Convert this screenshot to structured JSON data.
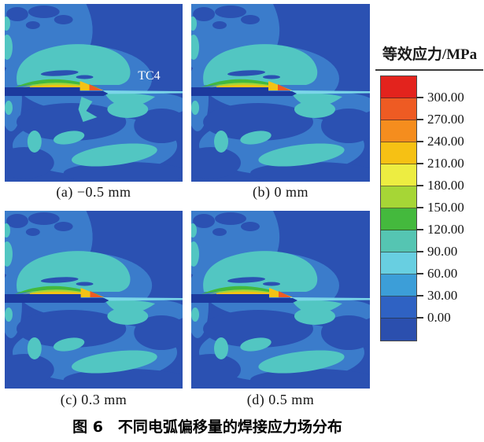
{
  "figure": {
    "panels": [
      {
        "id": "a",
        "label": "(a) −0.5 mm",
        "annotation": "TC4"
      },
      {
        "id": "b",
        "label": "(b) 0 mm"
      },
      {
        "id": "c",
        "label": "(c) 0.3 mm"
      },
      {
        "id": "d",
        "label": "(d) 0.5 mm"
      }
    ],
    "legend": {
      "title": "等效应力/MPa",
      "tick_labels": [
        "300.00",
        "270.00",
        "240.00",
        "210.00",
        "180.00",
        "150.00",
        "120.00",
        "90.00",
        "60.00",
        "30.00",
        "0.00"
      ],
      "band_colors_top_to_bottom": [
        "#e3231d",
        "#ee5b23",
        "#f58d1e",
        "#f6c114",
        "#eded41",
        "#a6d636",
        "#44b93d",
        "#55c5b2",
        "#68cfe1",
        "#3c9ed8",
        "#2f62c3",
        "#2b4fae"
      ]
    },
    "caption": "图 6　不同电弧偏移量的焊接应力场分布",
    "panel_palette": {
      "background_dark_blue": "#2b51b2",
      "light_blue": "#3b7ccb",
      "teal": "#52c6c2",
      "pale_cyan": "#7ad6e8",
      "green": "#43b93e",
      "yellow_green": "#a6d637",
      "amber": "#f3c214",
      "orange_red": "#ee5b23",
      "weld_plate_navy": "#1c3a9e",
      "annotation_text": "#ffffff"
    }
  },
  "chart_data": {
    "type": "heatmap",
    "subtype": "FEM welding equivalent-stress contour plots (2x2 panels)",
    "title": "图 6　不同电弧偏移量的焊接应力场分布",
    "panels": [
      {
        "label": "(a) −0.5 mm",
        "arc_offset_mm": -0.5
      },
      {
        "label": "(b) 0 mm",
        "arc_offset_mm": 0
      },
      {
        "label": "(c) 0.3 mm",
        "arc_offset_mm": 0.3
      },
      {
        "label": "(d) 0.5 mm",
        "arc_offset_mm": 0.5
      }
    ],
    "colorbar": {
      "title": "等效应力/MPa",
      "unit": "MPa",
      "orientation": "vertical",
      "position": "right",
      "tick_values": [
        300,
        270,
        240,
        210,
        180,
        150,
        120,
        90,
        60,
        30,
        0
      ],
      "band_colors_top_to_bottom": [
        "#e3231d",
        "#ee5b23",
        "#f58d1e",
        "#f6c114",
        "#eded41",
        "#a6d636",
        "#44b93d",
        "#55c5b2",
        "#68cfe1",
        "#3c9ed8",
        "#2f62c3",
        "#2b4fae"
      ]
    },
    "material_annotation": "TC4",
    "notes": "Peak stress band (green/yellow/orange ≈150–270 MPa) concentrated along the lap-weld line; surrounding field mostly 0–90 MPa (blues/teal)."
  }
}
